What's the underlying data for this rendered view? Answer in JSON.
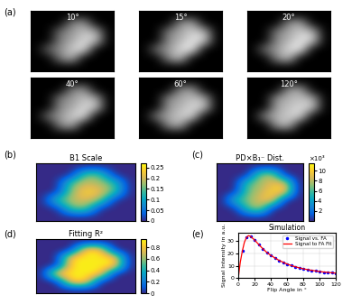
{
  "chart_data": [
    {
      "panel": "(a)",
      "type": "image",
      "tick_labels": false,
      "zlim": [
        0,
        1
      ],
      "images": [
        {
          "title": "10°",
          "cells": [
            [
              0,
              0,
              0,
              0,
              0,
              0,
              0
            ],
            [
              0,
              0,
              0,
              0.5,
              0.6,
              0,
              0
            ],
            [
              0,
              0,
              0.45,
              0.6,
              0.75,
              0.7,
              0
            ],
            [
              0,
              0,
              0.5,
              0.65,
              0.85,
              0.8,
              0
            ],
            [
              0,
              0.4,
              0.55,
              0.8,
              0.9,
              0,
              0
            ],
            [
              0,
              0,
              0.5,
              0.7,
              0,
              0,
              0
            ],
            [
              0,
              0,
              0,
              0,
              0,
              0,
              0
            ]
          ]
        },
        {
          "title": "15°",
          "cells": [
            [
              0,
              0,
              0,
              0,
              0,
              0,
              0
            ],
            [
              0,
              0,
              0,
              0.55,
              0.65,
              0,
              0
            ],
            [
              0,
              0,
              0.5,
              0.65,
              0.8,
              0.75,
              0
            ],
            [
              0,
              0,
              0.55,
              0.7,
              0.9,
              0.85,
              0
            ],
            [
              0,
              0.45,
              0.6,
              0.85,
              0.95,
              0,
              0
            ],
            [
              0,
              0,
              0.55,
              0.75,
              0,
              0,
              0
            ],
            [
              0,
              0,
              0,
              0,
              0,
              0,
              0
            ]
          ]
        },
        {
          "title": "20°",
          "cells": [
            [
              0,
              0,
              0,
              0,
              0,
              0,
              0
            ],
            [
              0,
              0,
              0,
              0.55,
              0.65,
              0,
              0
            ],
            [
              0,
              0,
              0.5,
              0.65,
              0.8,
              0.75,
              0
            ],
            [
              0,
              0,
              0.55,
              0.7,
              0.9,
              0.85,
              0
            ],
            [
              0,
              0.45,
              0.6,
              0.85,
              0.95,
              0,
              0
            ],
            [
              0,
              0,
              0.55,
              0.75,
              0,
              0,
              0
            ],
            [
              0,
              0,
              0,
              0,
              0,
              0,
              0
            ]
          ]
        },
        {
          "title": "40°",
          "cells": [
            [
              0,
              0,
              0,
              0,
              0,
              0,
              0
            ],
            [
              0,
              0,
              0,
              0.5,
              0.6,
              0,
              0
            ],
            [
              0,
              0,
              0.5,
              0.6,
              0.75,
              0.7,
              0
            ],
            [
              0,
              0,
              0.55,
              0.65,
              0.85,
              0.8,
              0
            ],
            [
              0,
              0.45,
              0.6,
              0.8,
              0.9,
              0,
              0
            ],
            [
              0,
              0,
              0.55,
              0.7,
              0,
              0,
              0
            ],
            [
              0,
              0,
              0,
              0,
              0,
              0,
              0
            ]
          ]
        },
        {
          "title": "60°",
          "cells": [
            [
              0,
              0,
              0,
              0,
              0,
              0,
              0
            ],
            [
              0,
              0,
              0,
              0.55,
              0.6,
              0,
              0
            ],
            [
              0,
              0,
              0.55,
              0.65,
              0.75,
              0.7,
              0
            ],
            [
              0,
              0,
              0.6,
              0.7,
              0.85,
              0.8,
              0
            ],
            [
              0,
              0.5,
              0.65,
              0.8,
              0.85,
              0,
              0
            ],
            [
              0,
              0,
              0.6,
              0.7,
              0,
              0,
              0
            ],
            [
              0,
              0,
              0,
              0,
              0,
              0,
              0
            ]
          ]
        },
        {
          "title": "120°",
          "cells": [
            [
              0,
              0,
              0,
              0,
              0,
              0,
              0
            ],
            [
              0,
              0,
              0,
              0.6,
              0.65,
              0,
              0
            ],
            [
              0,
              0,
              0.6,
              0.7,
              0.75,
              0.7,
              0
            ],
            [
              0,
              0,
              0.65,
              0.75,
              0.85,
              0.8,
              0
            ],
            [
              0,
              0.55,
              0.7,
              0.8,
              0.85,
              0,
              0
            ],
            [
              0,
              0,
              0.65,
              0.75,
              0,
              0,
              0
            ],
            [
              0,
              0,
              0,
              0,
              0,
              0,
              0
            ]
          ]
        }
      ]
    },
    {
      "panel": "(b)",
      "type": "heatmap",
      "title": "B1 Scale",
      "tick_labels": false,
      "cells": [
        [
          0,
          0,
          0,
          0,
          0,
          0,
          0
        ],
        [
          0,
          0,
          0,
          0.16,
          0.15,
          0,
          0
        ],
        [
          0,
          0,
          0.15,
          0.2,
          0.18,
          0.14,
          0
        ],
        [
          0,
          0,
          0.17,
          0.24,
          0.22,
          0.15,
          0
        ],
        [
          0,
          0.14,
          0.19,
          0.21,
          0.17,
          0,
          0
        ],
        [
          0,
          0,
          0.15,
          0.16,
          0,
          0,
          0
        ],
        [
          0,
          0,
          0,
          0,
          0,
          0,
          0
        ]
      ],
      "colorbar": {
        "lim": [
          0,
          0.27
        ],
        "ticks": [
          0,
          0.05,
          0.1,
          0.15,
          0.2,
          0.25
        ]
      }
    },
    {
      "panel": "(c)",
      "type": "heatmap",
      "title": "PD×B₁⁻ Dist.",
      "tick_labels": false,
      "cells": [
        [
          0,
          0,
          0,
          0,
          0,
          0,
          0
        ],
        [
          0,
          0,
          0,
          7,
          8,
          0,
          0
        ],
        [
          0,
          0,
          6,
          7.5,
          9,
          9.5,
          0
        ],
        [
          0,
          0,
          6.5,
          8,
          10,
          10.5,
          0
        ],
        [
          0,
          5.5,
          7,
          9,
          10,
          0,
          0
        ],
        [
          0,
          0,
          6,
          8,
          0,
          0,
          0
        ],
        [
          0,
          0,
          0,
          0,
          0,
          0,
          0
        ]
      ],
      "colorbar": {
        "lim": [
          0,
          11.5
        ],
        "ticks": [
          2,
          4,
          6,
          8,
          10
        ],
        "label": "×10³"
      }
    },
    {
      "panel": "(d)",
      "type": "heatmap",
      "title": "Fitting R²",
      "tick_labels": false,
      "cells": [
        [
          0,
          0,
          0,
          0,
          0,
          0,
          0
        ],
        [
          0,
          0,
          0,
          0.9,
          0.9,
          0,
          0
        ],
        [
          0,
          0,
          0.9,
          0.91,
          0.9,
          0.9,
          0
        ],
        [
          0,
          0,
          0.9,
          0.92,
          0.91,
          0.9,
          0
        ],
        [
          0,
          0.9,
          0.91,
          0.91,
          0.9,
          0,
          0
        ],
        [
          0,
          0,
          0.9,
          0.9,
          0,
          0,
          0
        ],
        [
          0,
          0,
          0,
          0,
          0,
          0,
          0
        ]
      ],
      "colorbar": {
        "lim": [
          0,
          0.95
        ],
        "ticks": [
          0,
          0.2,
          0.4,
          0.6,
          0.8
        ]
      }
    },
    {
      "panel": "(e)",
      "type": "line",
      "title": "Simulation",
      "x_label": "Flip Angle in °",
      "y_label": "Signal Intensity in a.u.",
      "xlim": [
        0,
        120
      ],
      "xticks": [
        0,
        20,
        40,
        60,
        80,
        100,
        120
      ],
      "ylim": [
        0,
        37
      ],
      "yticks": [
        0,
        10,
        20,
        30
      ],
      "grid": true,
      "legend": "upper right",
      "series": [
        {
          "name": "Signal vs. FA",
          "type": "scatter",
          "color": "#0000ff",
          "marker": "point",
          "x": [
            5,
            10,
            15,
            20,
            25,
            30,
            35,
            40,
            45,
            50,
            55,
            60,
            65,
            70,
            75,
            80,
            85,
            90,
            95,
            100,
            105,
            110,
            115,
            120
          ],
          "values": [
            22,
            33,
            34,
            31,
            27.5,
            24,
            21,
            18.5,
            16.5,
            14.5,
            13,
            11.5,
            10.3,
            9.3,
            8.4,
            7.6,
            7,
            6.4,
            5.9,
            5.4,
            5,
            4.7,
            4.4,
            4.1
          ]
        },
        {
          "name": "Signal to FA Fit",
          "type": "line",
          "color": "#ff0000",
          "line_style": "solid",
          "x": [
            0,
            2.5,
            5,
            7.5,
            10,
            12.5,
            15,
            17.5,
            20,
            25,
            30,
            35,
            40,
            45,
            50,
            55,
            60,
            65,
            70,
            75,
            80,
            85,
            90,
            95,
            100,
            105,
            110,
            115,
            120
          ],
          "values": [
            0,
            13,
            22,
            29,
            33,
            34.5,
            34,
            32.5,
            31,
            27.5,
            24,
            21,
            18.5,
            16.5,
            14.5,
            13,
            11.5,
            10.3,
            9.3,
            8.4,
            7.6,
            7,
            6.4,
            5.9,
            5.4,
            5,
            4.7,
            4.4,
            4.1
          ]
        }
      ]
    }
  ]
}
